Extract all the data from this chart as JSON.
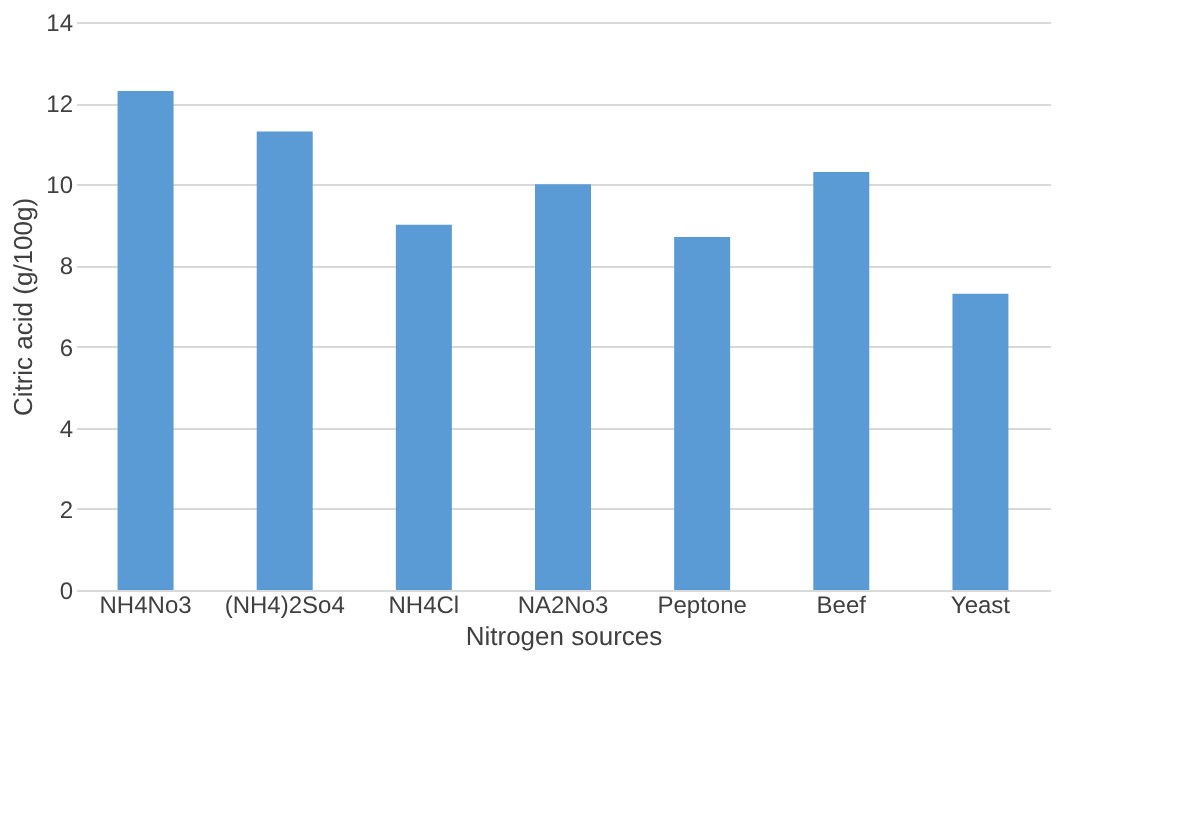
{
  "chart_data": {
    "type": "bar",
    "xlabel": "Nitrogen sources",
    "ylabel": "Citric acid (g/100g)",
    "categories": [
      "NH4No3",
      "(NH4)2So4",
      "NH4Cl",
      "NA2No3",
      "Peptone",
      "Beef",
      "Yeast"
    ],
    "values": [
      12.3,
      11.3,
      9.0,
      10.0,
      8.7,
      10.3,
      7.3
    ],
    "color": "#5b9bd5",
    "ylim": [
      0,
      14
    ],
    "yticks": [
      0,
      2,
      4,
      6,
      8,
      10,
      12,
      14
    ],
    "grid": "y"
  }
}
